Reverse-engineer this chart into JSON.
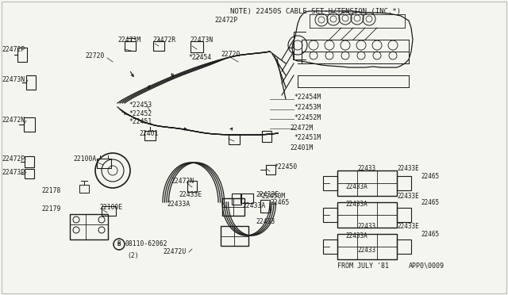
{
  "bg_color": "#f5f5f0",
  "line_color": "#1a1a1a",
  "gray_color": "#777777",
  "note_text": "NOTE) 22450S CABLE SET-H/TENSION (INC.*)",
  "footnote": "FROM JULY '81",
  "diagram_id": "APP0\\0009",
  "bolt_label": "08110-62062",
  "bolt_qty": "(2)",
  "figsize": [
    6.4,
    3.72
  ],
  "dpi": 100
}
